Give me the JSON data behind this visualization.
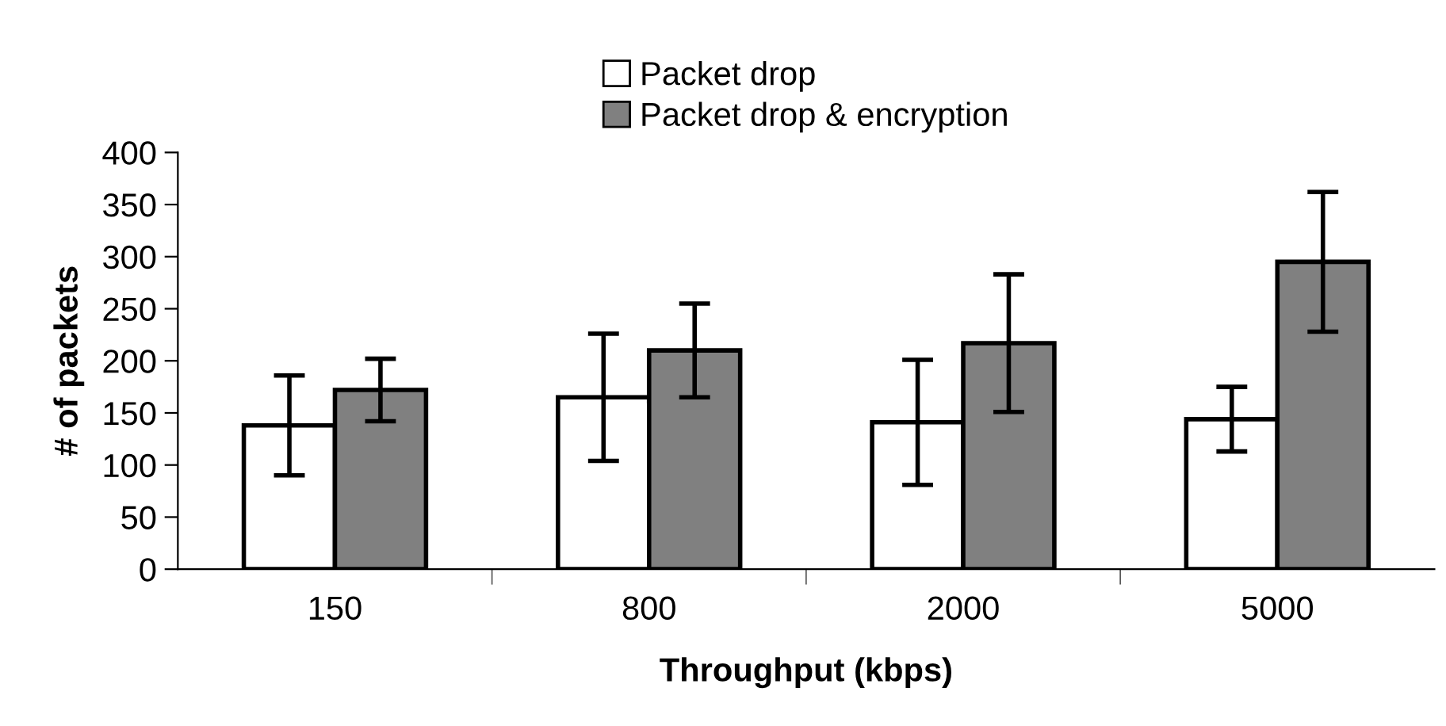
{
  "chart_data": {
    "type": "bar",
    "xlabel": "Throughput (kbps)",
    "ylabel": "# of packets",
    "categories": [
      "150",
      "800",
      "2000",
      "5000"
    ],
    "series": [
      {
        "name": "Packet drop",
        "color": "#ffffff",
        "values": [
          138,
          165,
          141,
          144
        ],
        "errors": [
          48,
          61,
          60,
          31
        ]
      },
      {
        "name": "Packet drop & encryption",
        "color": "#808080",
        "values": [
          172,
          210,
          217,
          295
        ],
        "errors": [
          30,
          45,
          66,
          67
        ]
      }
    ],
    "ylim": [
      0,
      400
    ],
    "yticks": [
      0,
      50,
      100,
      150,
      200,
      250,
      300,
      350,
      400
    ],
    "grid": false,
    "legend": "top"
  }
}
